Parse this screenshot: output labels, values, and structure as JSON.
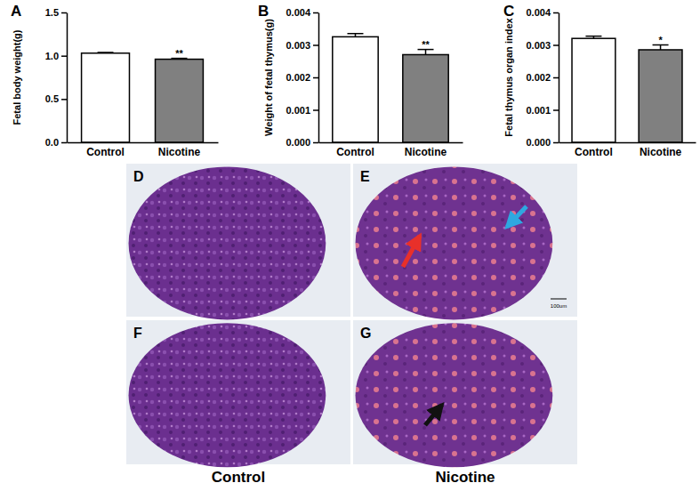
{
  "chart_data": [
    {
      "type": "bar",
      "title": "A",
      "y_label": "Fetal body weight(g)",
      "categories": [
        "Control",
        "Nicotine"
      ],
      "values": [
        1.03,
        0.96
      ],
      "errors": [
        0.008,
        0.01
      ],
      "significance": [
        null,
        "**"
      ],
      "colors": [
        "#ffffff",
        "#808080"
      ],
      "ylim": [
        0,
        1.5
      ],
      "yticks": [
        {
          "value": 0,
          "label": "0.0"
        },
        0.5,
        {
          "value": 1,
          "label": "1.0"
        },
        1.5
      ]
    },
    {
      "type": "bar",
      "title": "B",
      "y_label": "Weight of fetal thymus(g)",
      "categories": [
        "Control",
        "Nicotine"
      ],
      "values": [
        0.00325,
        0.0027
      ],
      "errors": [
        0.0001,
        0.00016
      ],
      "significance": [
        null,
        "**"
      ],
      "colors": [
        "#ffffff",
        "#808080"
      ],
      "ylim": [
        0,
        0.004
      ],
      "yticks": [
        {
          "value": 0,
          "label": "0.000"
        },
        0.001,
        0.002,
        0.003,
        0.004
      ]
    },
    {
      "type": "bar",
      "title": "C",
      "y_label": "Fetal thymus organ index",
      "categories": [
        "Control",
        "Nicotine"
      ],
      "values": [
        0.0032,
        0.00285
      ],
      "errors": [
        7e-05,
        0.00015
      ],
      "significance": [
        null,
        "*"
      ],
      "colors": [
        "#ffffff",
        "#808080"
      ],
      "ylim": [
        0,
        0.004
      ],
      "yticks": [
        {
          "value": 0,
          "label": "0.000"
        },
        0.001,
        0.002,
        0.003,
        0.004
      ]
    }
  ],
  "image_panels": [
    {
      "label": "D"
    },
    {
      "label": "E",
      "scale_bar": "100um"
    },
    {
      "label": "F"
    },
    {
      "label": "G"
    }
  ],
  "captions": [
    "Control",
    "Nicotine"
  ]
}
